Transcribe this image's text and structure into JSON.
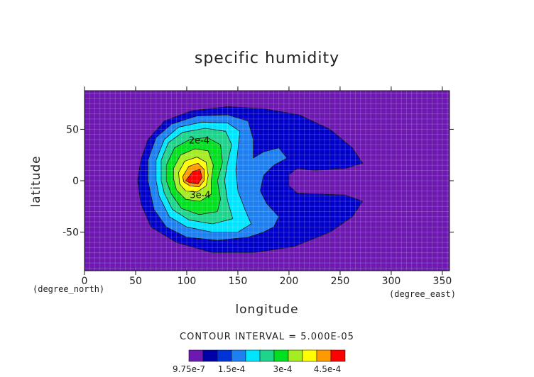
{
  "chart_data": {
    "type": "contour",
    "title": "specific humidity",
    "xlabel": "longitude",
    "ylabel": "latitude",
    "x_unit": "(degree_east)",
    "y_unit": "(degree_north)",
    "xlim": [
      0,
      357
    ],
    "ylim": [
      -87.5,
      87.5
    ],
    "x_ticks": [
      0,
      50,
      100,
      150,
      200,
      250,
      300,
      350
    ],
    "y_ticks": [
      50,
      0,
      -50
    ],
    "contour_interval_text": "CONTOUR INTERVAL = 5.000E-05",
    "contour_labels": [
      "2e-4",
      "3e-4"
    ],
    "colorbar_labels": [
      "9.75e-7",
      "1.5e-4",
      "3e-4",
      "4.5e-4"
    ],
    "levels": [
      9.75e-07,
      5e-05,
      0.0001,
      0.00015,
      0.0002,
      0.00025,
      0.0003,
      0.00035,
      0.0004,
      0.00045,
      0.0005
    ],
    "colors": [
      "#6d18b0",
      "#0000a8",
      "#0033d6",
      "#1d7ff0",
      "#00e5ff",
      "#1ed38c",
      "#00e020",
      "#a5ed20",
      "#ffff00",
      "#ff9a00",
      "#ff0000"
    ],
    "grid": true,
    "regions": [
      {
        "level": 1,
        "color": "#0000c8",
        "points": [
          [
            55,
            20
          ],
          [
            62,
            40
          ],
          [
            78,
            58
          ],
          [
            105,
            68
          ],
          [
            140,
            72
          ],
          [
            175,
            70
          ],
          [
            210,
            64
          ],
          [
            240,
            50
          ],
          [
            262,
            32
          ],
          [
            272,
            17
          ],
          [
            255,
            12
          ],
          [
            225,
            10
          ],
          [
            208,
            12
          ],
          [
            200,
            6
          ],
          [
            200,
            -5
          ],
          [
            208,
            -12
          ],
          [
            230,
            -13
          ],
          [
            255,
            -14
          ],
          [
            272,
            -20
          ],
          [
            262,
            -35
          ],
          [
            240,
            -50
          ],
          [
            205,
            -64
          ],
          [
            165,
            -70
          ],
          [
            125,
            -70
          ],
          [
            90,
            -60
          ],
          [
            65,
            -45
          ],
          [
            55,
            -22
          ],
          [
            52,
            0
          ]
        ]
      },
      {
        "level": 3,
        "color": "#1d7ff0",
        "points": [
          [
            62,
            20
          ],
          [
            70,
            42
          ],
          [
            85,
            55
          ],
          [
            110,
            63
          ],
          [
            140,
            64
          ],
          [
            160,
            58
          ],
          [
            165,
            40
          ],
          [
            165,
            22
          ],
          [
            175,
            28
          ],
          [
            190,
            32
          ],
          [
            198,
            22
          ],
          [
            185,
            15
          ],
          [
            175,
            5
          ],
          [
            172,
            -10
          ],
          [
            178,
            -22
          ],
          [
            190,
            -35
          ],
          [
            185,
            -45
          ],
          [
            175,
            -50
          ],
          [
            160,
            -55
          ],
          [
            130,
            -58
          ],
          [
            100,
            -55
          ],
          [
            80,
            -45
          ],
          [
            68,
            -28
          ],
          [
            62,
            0
          ]
        ]
      },
      {
        "level": 4,
        "color": "#00e5ff",
        "points": [
          [
            70,
            20
          ],
          [
            78,
            40
          ],
          [
            92,
            52
          ],
          [
            115,
            57
          ],
          [
            140,
            56
          ],
          [
            152,
            48
          ],
          [
            150,
            30
          ],
          [
            148,
            10
          ],
          [
            150,
            -10
          ],
          [
            157,
            -28
          ],
          [
            163,
            -42
          ],
          [
            150,
            -50
          ],
          [
            125,
            -50
          ],
          [
            100,
            -45
          ],
          [
            83,
            -35
          ],
          [
            73,
            -15
          ],
          [
            70,
            0
          ]
        ]
      },
      {
        "level": 5,
        "color": "#1ed38c",
        "points": [
          [
            75,
            20
          ],
          [
            82,
            37
          ],
          [
            96,
            47
          ],
          [
            118,
            51
          ],
          [
            138,
            48
          ],
          [
            144,
            35
          ],
          [
            140,
            18
          ],
          [
            137,
            0
          ],
          [
            140,
            -20
          ],
          [
            145,
            -37
          ],
          [
            125,
            -42
          ],
          [
            102,
            -38
          ],
          [
            86,
            -28
          ],
          [
            78,
            -12
          ],
          [
            75,
            0
          ]
        ]
      },
      {
        "level": 6,
        "color": "#00e020",
        "points": [
          [
            80,
            15
          ],
          [
            88,
            32
          ],
          [
            103,
            40
          ],
          [
            120,
            42
          ],
          [
            133,
            35
          ],
          [
            135,
            18
          ],
          [
            130,
            0
          ],
          [
            133,
            -18
          ],
          [
            130,
            -30
          ],
          [
            112,
            -33
          ],
          [
            95,
            -27
          ],
          [
            85,
            -13
          ],
          [
            80,
            0
          ]
        ]
      },
      {
        "level": 7,
        "color": "#a5ed20",
        "points": [
          [
            87,
            12
          ],
          [
            94,
            25
          ],
          [
            108,
            31
          ],
          [
            121,
            29
          ],
          [
            126,
            15
          ],
          [
            124,
            0
          ],
          [
            124,
            -13
          ],
          [
            113,
            -20
          ],
          [
            99,
            -18
          ],
          [
            90,
            -9
          ],
          [
            87,
            2
          ]
        ]
      },
      {
        "level": 8,
        "color": "#ffff00",
        "points": [
          [
            92,
            8
          ],
          [
            98,
            19
          ],
          [
            110,
            23
          ],
          [
            119,
            18
          ],
          [
            121,
            5
          ],
          [
            119,
            -5
          ],
          [
            110,
            -11
          ],
          [
            99,
            -10
          ],
          [
            93,
            -3
          ]
        ]
      },
      {
        "level": 9,
        "color": "#ff9a00",
        "points": [
          [
            96,
            4
          ],
          [
            102,
            14
          ],
          [
            111,
            17
          ],
          [
            117,
            11
          ],
          [
            117,
            0
          ],
          [
            112,
            -6
          ],
          [
            103,
            -5
          ],
          [
            97,
            -1
          ]
        ]
      },
      {
        "level": 10,
        "color": "#ff0000",
        "points": [
          [
            99,
            0
          ],
          [
            106,
            9
          ],
          [
            113,
            11
          ],
          [
            115,
            3
          ],
          [
            111,
            -3
          ],
          [
            103,
            -2
          ]
        ]
      }
    ]
  }
}
